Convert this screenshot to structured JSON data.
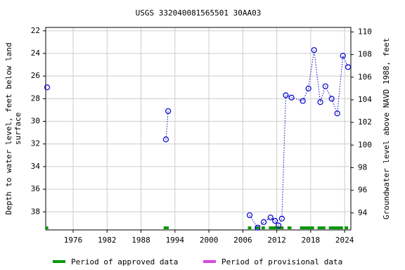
{
  "chart_data": {
    "type": "scatter",
    "title": "USGS 332040081565501 30AA03",
    "ylabel": [
      "Depth to water level, feet below land",
      "surface"
    ],
    "y2label": "Groundwater level above NAVD 1988, feet",
    "x": [
      1971.4,
      null,
      1992.4,
      1992.8,
      null,
      2007.2,
      2008.6,
      2009.7,
      2010.9,
      2011.7,
      2012.3,
      2012.9,
      2013.6,
      2014.6,
      2016.6,
      2017.6,
      2018.6,
      2019.7,
      2020.6,
      2021.7,
      2022.7,
      2023.7,
      2024.6
    ],
    "values": [
      27.0,
      null,
      31.6,
      29.1,
      null,
      38.3,
      39.4,
      38.9,
      38.5,
      38.8,
      39.2,
      38.6,
      27.7,
      27.9,
      28.2,
      27.1,
      23.7,
      28.3,
      26.9,
      28.0,
      29.3,
      24.2,
      25.2
    ],
    "color": "#0000cc",
    "xlim": [
      1971.15,
      2025.1
    ],
    "xticks": [
      1976,
      1982,
      1988,
      1994,
      2000,
      2006,
      2012,
      2018,
      2024
    ],
    "ylim": [
      39.6,
      21.7
    ],
    "yticks": [
      22,
      24,
      26,
      28,
      30,
      32,
      34,
      36,
      38
    ],
    "y2lim": [
      92.5,
      110.4
    ],
    "y2ticks": [
      94,
      96,
      98,
      100,
      102,
      104,
      106,
      108,
      110
    ],
    "grid": true,
    "approved_periods": [
      [
        1971.15,
        1971.6
      ],
      [
        1992.0,
        1992.9
      ],
      [
        2006.9,
        2007.5
      ],
      [
        2008.2,
        2008.9
      ],
      [
        2009.3,
        2009.9
      ],
      [
        2010.6,
        2013.2
      ],
      [
        2013.9,
        2014.6
      ],
      [
        2016.1,
        2018.6
      ],
      [
        2019.2,
        2020.6
      ],
      [
        2021.2,
        2023.7
      ],
      [
        2024.0,
        2024.6
      ]
    ],
    "legend": [
      {
        "label": "Period of approved data",
        "color": "#009900"
      },
      {
        "label": "Period of provisional data",
        "color": "#dd44dd"
      }
    ]
  }
}
